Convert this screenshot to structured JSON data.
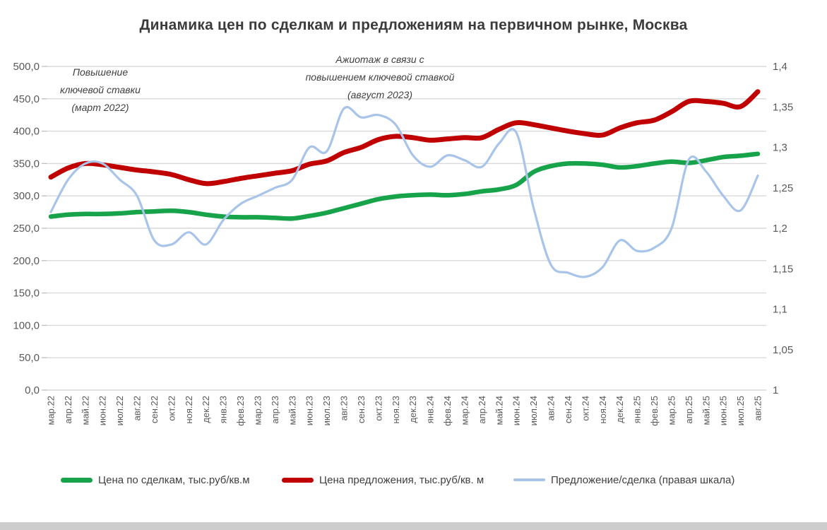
{
  "title": "Динамика цен по сделкам и предложениям на первичном рынке, Москва",
  "annotations": [
    {
      "lines": [
        "Повышение",
        "ключевой ставки",
        "(март 2022)"
      ]
    },
    {
      "lines": [
        "Ажиотаж в связи с",
        "повышением ключевой ставкой",
        "(август 2023)"
      ]
    }
  ],
  "colors": {
    "deal_price": "#17A34A",
    "offer_price": "#C00000",
    "ratio": "#A9C4E9",
    "grid": "#D9D9D9",
    "tick": "#BFBFBF",
    "axis_text": "#595959",
    "title_text": "#3B3B3B",
    "window_edge": "#CDCDCD"
  },
  "chart_data": {
    "type": "line",
    "title": "Динамика цен по сделкам и предложениям на первичном рынке, Москва",
    "grid": true,
    "legend_position": "bottom",
    "categories": [
      "мар.22",
      "апр.22",
      "май.22",
      "июн.22",
      "июл.22",
      "авг.22",
      "сен.22",
      "окт.22",
      "ноя.22",
      "дек.22",
      "янв.23",
      "фев.23",
      "мар.23",
      "апр.23",
      "май.23",
      "июн.23",
      "июл.23",
      "авг.23",
      "сен.23",
      "окт.23",
      "ноя.23",
      "дек.23",
      "янв.24",
      "фев.24",
      "мар.24",
      "апр.24",
      "май.24",
      "июн.24",
      "июл.24",
      "авг.24",
      "сен.24",
      "окт.24",
      "ноя.24",
      "дек.24",
      "янв.25",
      "фев.25",
      "мар.25",
      "апр.25",
      "май.25",
      "июн.25",
      "июл.25",
      "авг.25"
    ],
    "left_axis": {
      "min": 0,
      "max": 500,
      "step": 50,
      "tick_labels": [
        "500,0",
        "450,0",
        "400,0",
        "350,0",
        "300,0",
        "250,0",
        "200,0",
        "150,0",
        "100,0",
        "50,0",
        "0,0"
      ]
    },
    "right_axis": {
      "min": 1,
      "max": 1.4,
      "step": 0.05,
      "tick_labels": [
        "1,4",
        "1,35",
        "1,3",
        "1,25",
        "1,2",
        "1,15",
        "1,1",
        "1,05",
        "1"
      ]
    },
    "series": [
      {
        "key": "deal-price",
        "name": "Цена по сделкам, тыс.руб/кв.м",
        "axis": "left",
        "color": "#17A34A",
        "values": [
          268,
          271,
          272,
          272,
          273,
          275,
          276,
          277,
          275,
          271,
          268,
          267,
          267,
          266,
          265,
          269,
          274,
          281,
          288,
          295,
          299,
          301,
          302,
          301,
          303,
          307,
          310,
          317,
          337,
          346,
          350,
          350,
          348,
          344,
          346,
          350,
          353,
          351,
          355,
          360,
          362,
          365
        ]
      },
      {
        "key": "offer-price",
        "name": "Цена предложения, тыс.руб/кв. м",
        "axis": "left",
        "color": "#C00000",
        "values": [
          329,
          343,
          350,
          348,
          344,
          340,
          337,
          333,
          325,
          319,
          322,
          327,
          331,
          335,
          339,
          349,
          354,
          367,
          375,
          387,
          392,
          390,
          386,
          388,
          390,
          390,
          403,
          413,
          410,
          405,
          400,
          396,
          394,
          405,
          413,
          417,
          430,
          446,
          446,
          443,
          438,
          461
        ]
      },
      {
        "key": "ratio",
        "name": "Предложение/сделка (правая шкала)",
        "axis": "right",
        "color": "#A9C4E9",
        "values": [
          1.22,
          1.26,
          1.28,
          1.28,
          1.26,
          1.24,
          1.185,
          1.18,
          1.195,
          1.18,
          1.21,
          1.23,
          1.24,
          1.25,
          1.26,
          1.3,
          1.295,
          1.348,
          1.337,
          1.34,
          1.328,
          1.29,
          1.276,
          1.29,
          1.284,
          1.276,
          1.305,
          1.318,
          1.225,
          1.155,
          1.145,
          1.14,
          1.152,
          1.185,
          1.172,
          1.176,
          1.2,
          1.285,
          1.27,
          1.24,
          1.222,
          1.265
        ]
      }
    ]
  }
}
